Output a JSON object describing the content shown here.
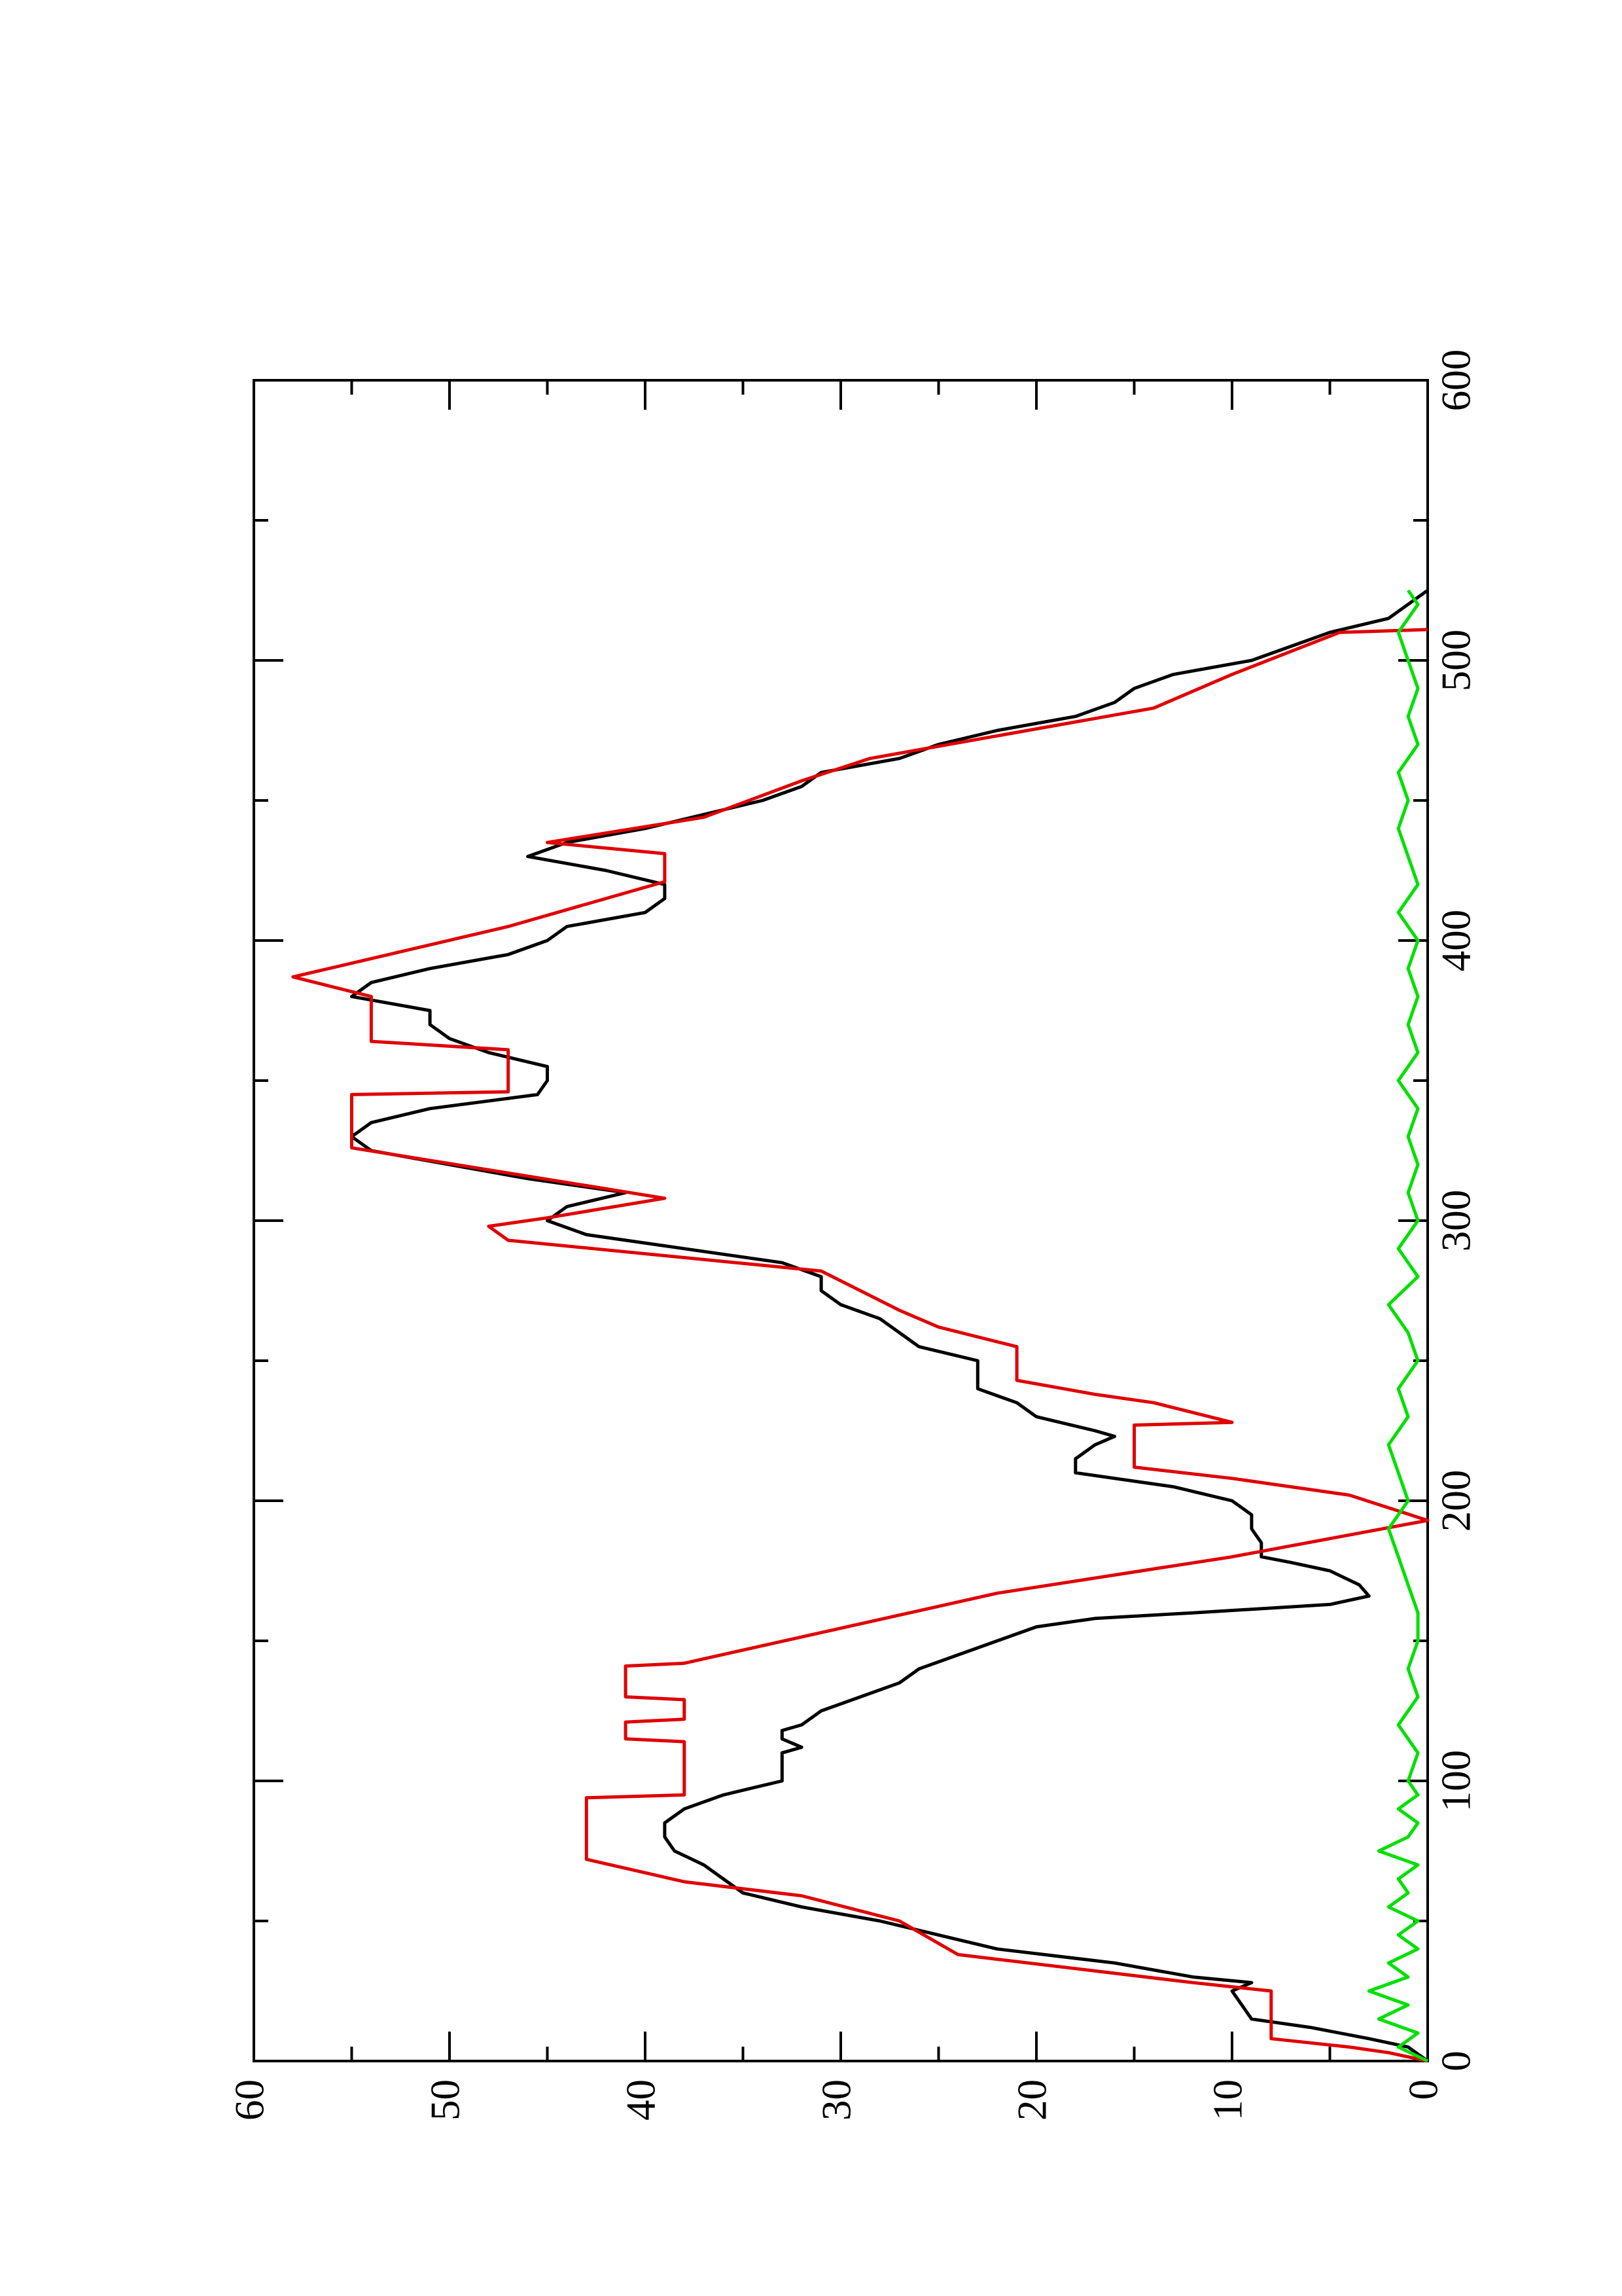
{
  "chart_data": {
    "type": "line",
    "xlim": [
      0,
      600
    ],
    "xticks": [
      0,
      100,
      200,
      300,
      400,
      500,
      600
    ],
    "xminorticks": [
      50,
      150,
      250,
      350,
      450,
      550
    ],
    "ylim": [
      0,
      60
    ],
    "yticks": [
      0,
      10,
      20,
      30,
      40,
      50,
      60
    ],
    "yminorticks": [
      5,
      15,
      25,
      35,
      45,
      55
    ],
    "rotated": true,
    "series": [
      {
        "color": "#000000",
        "x": [
          0,
          5,
          8,
          12,
          15,
          20,
          25,
          28,
          30,
          35,
          40,
          45,
          50,
          55,
          60,
          65,
          70,
          75,
          80,
          85,
          90,
          95,
          100,
          105,
          110,
          112,
          115,
          118,
          120,
          125,
          130,
          135,
          140,
          145,
          150,
          155,
          158,
          160,
          163,
          166,
          170,
          175,
          178,
          180,
          185,
          190,
          195,
          200,
          205,
          210,
          215,
          220,
          223,
          225,
          230,
          235,
          240,
          245,
          250,
          255,
          260,
          265,
          270,
          275,
          280,
          285,
          290,
          295,
          300,
          305,
          310,
          315,
          320,
          325,
          330,
          335,
          340,
          345,
          350,
          355,
          360,
          365,
          370,
          375,
          380,
          385,
          390,
          395,
          400,
          405,
          410,
          415,
          420,
          425,
          430,
          435,
          440,
          445,
          450,
          455,
          460,
          465,
          470,
          475,
          480,
          485,
          490,
          495,
          500,
          505,
          510,
          515,
          520,
          525
        ],
        "values": [
          0,
          1,
          3,
          6,
          9,
          9.5,
          10,
          9,
          12,
          16,
          22,
          25,
          28,
          32,
          35,
          36,
          37,
          38.5,
          39,
          39,
          38,
          36,
          33,
          33,
          33,
          32,
          33,
          33,
          32,
          31,
          29,
          27,
          26,
          24,
          22,
          20,
          17,
          12,
          5,
          3,
          3.5,
          5,
          7,
          8.5,
          8.5,
          9,
          9,
          10,
          13,
          18,
          18,
          17,
          16,
          17,
          20,
          21,
          23,
          23,
          23,
          26,
          27,
          28,
          30,
          31,
          31,
          33,
          38,
          43,
          45,
          44,
          41,
          46,
          50,
          54,
          55,
          54,
          51,
          45.5,
          45,
          45,
          48,
          50,
          51,
          51,
          55,
          54,
          51,
          47,
          45,
          44,
          40,
          39,
          39,
          42,
          46,
          44,
          40,
          37,
          34,
          32,
          31,
          27,
          25,
          22,
          18,
          16,
          15,
          13,
          9,
          7,
          5,
          2,
          1,
          0
        ]
      },
      {
        "color": "#e00000",
        "x": [
          0,
          3,
          5,
          8,
          25,
          28,
          38,
          50,
          59,
          64,
          72,
          94,
          95,
          114,
          115,
          121,
          122,
          129,
          130,
          141,
          142,
          167,
          180,
          193,
          202,
          208,
          212,
          227,
          228,
          235,
          238,
          243,
          255,
          262,
          268,
          282,
          293,
          298,
          301,
          308,
          317,
          326,
          345,
          346,
          361,
          364,
          380,
          387,
          405,
          421,
          431,
          435,
          444,
          457,
          465,
          483,
          495,
          510,
          511
        ],
        "values": [
          0,
          2,
          4,
          8,
          8,
          12,
          24,
          27,
          32,
          38,
          43,
          43,
          38,
          38,
          41,
          41,
          38,
          38,
          41,
          41,
          38,
          22,
          10,
          0,
          4,
          10,
          15,
          15,
          10,
          14,
          17,
          21,
          21,
          25,
          27,
          31,
          47,
          48,
          45,
          39,
          47,
          55,
          55,
          47,
          47,
          54,
          54,
          58,
          47,
          39,
          39,
          45,
          37,
          32,
          28.5,
          14,
          10,
          4.5,
          0
        ]
      },
      {
        "color": "#00e000",
        "x": [
          0,
          5,
          10,
          15,
          20,
          25,
          30,
          35,
          40,
          45,
          50,
          55,
          60,
          65,
          70,
          75,
          80,
          85,
          90,
          95,
          100,
          110,
          120,
          130,
          140,
          150,
          160,
          170,
          180,
          190,
          200,
          210,
          220,
          230,
          240,
          250,
          260,
          270,
          280,
          290,
          300,
          310,
          320,
          330,
          340,
          350,
          360,
          370,
          380,
          390,
          400,
          410,
          420,
          430,
          440,
          450,
          460,
          470,
          480,
          490,
          500,
          510,
          520,
          525
        ],
        "values": [
          0,
          1.5,
          0.5,
          2.5,
          1,
          3,
          1,
          2,
          0.5,
          1.5,
          0.5,
          2,
          1,
          1.5,
          0.5,
          2.5,
          1,
          0.5,
          1.5,
          0.5,
          1,
          0.5,
          1.5,
          0.5,
          1,
          0.5,
          0.5,
          1,
          1.5,
          2,
          1,
          1.5,
          2,
          1,
          1.5,
          0.5,
          1,
          2,
          0.5,
          1.5,
          0.5,
          1,
          0.5,
          1,
          0.5,
          1.5,
          0.5,
          1,
          0.5,
          1,
          0.5,
          1.5,
          0.5,
          1,
          1.5,
          1,
          1.5,
          0.5,
          1,
          0.5,
          1,
          1.5,
          0.5,
          1
        ]
      }
    ]
  }
}
